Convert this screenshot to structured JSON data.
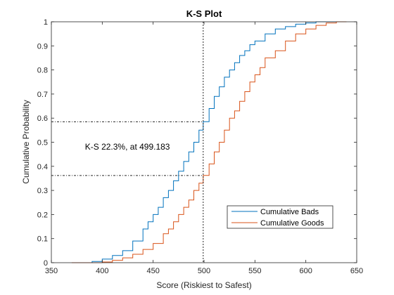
{
  "chart_data": {
    "type": "line",
    "title": "K-S Plot",
    "xlabel": "Score (Riskiest to Safest)",
    "ylabel": "Cumulative Probability",
    "xlim": [
      350,
      650
    ],
    "ylim": [
      0,
      1
    ],
    "xticks": [
      350,
      400,
      450,
      500,
      550,
      600,
      650
    ],
    "yticks": [
      0,
      0.1,
      0.2,
      0.3,
      0.4,
      0.5,
      0.6,
      0.7,
      0.8,
      0.9,
      1
    ],
    "grid": false,
    "legend_placement": "lower-right",
    "series": [
      {
        "name": "Cumulative Bads",
        "color": "#0072BD",
        "x": [
          375,
          390,
          400,
          410,
          420,
          430,
          440,
          445,
          450,
          455,
          460,
          465,
          470,
          475,
          480,
          485,
          490,
          495,
          499.183,
          505,
          510,
          515,
          520,
          525,
          530,
          535,
          540,
          545,
          550,
          560,
          570,
          580,
          590,
          600,
          610,
          620,
          630
        ],
        "y": [
          0,
          0.005,
          0.015,
          0.03,
          0.05,
          0.09,
          0.14,
          0.17,
          0.2,
          0.23,
          0.27,
          0.3,
          0.34,
          0.38,
          0.42,
          0.46,
          0.5,
          0.55,
          0.585,
          0.64,
          0.69,
          0.73,
          0.77,
          0.8,
          0.83,
          0.86,
          0.88,
          0.905,
          0.92,
          0.95,
          0.97,
          0.98,
          0.99,
          0.995,
          1,
          1,
          1
        ]
      },
      {
        "name": "Cumulative Goods",
        "color": "#D95319",
        "x": [
          370,
          390,
          400,
          410,
          420,
          430,
          440,
          450,
          460,
          465,
          470,
          475,
          480,
          485,
          490,
          495,
          499.183,
          505,
          510,
          515,
          520,
          525,
          530,
          535,
          540,
          545,
          550,
          555,
          560,
          570,
          580,
          590,
          600,
          610,
          620,
          630,
          640
        ],
        "y": [
          0,
          0,
          0.003,
          0.01,
          0.02,
          0.035,
          0.055,
          0.08,
          0.12,
          0.14,
          0.17,
          0.2,
          0.23,
          0.26,
          0.3,
          0.33,
          0.362,
          0.41,
          0.46,
          0.5,
          0.55,
          0.6,
          0.63,
          0.67,
          0.71,
          0.75,
          0.78,
          0.81,
          0.85,
          0.88,
          0.92,
          0.95,
          0.97,
          0.985,
          0.995,
          1,
          1
        ]
      }
    ],
    "ks": {
      "x": 499.183,
      "y_bads": 0.585,
      "y_goods": 0.362,
      "label": "K-S 22.3%, at 499.183",
      "label_x": 383,
      "label_y": 0.47
    }
  }
}
